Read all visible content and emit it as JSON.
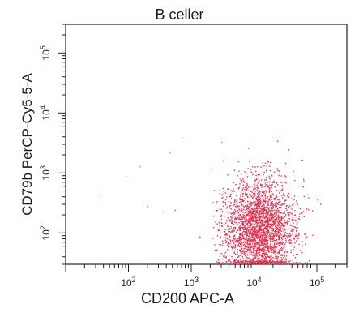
{
  "chart_data": {
    "type": "scatter",
    "title": "B celler",
    "xlabel": "CD200 APC-A",
    "ylabel": "CD79b PerCP-Cy5-5-A",
    "x_scale": "log",
    "y_scale": "log",
    "xlim": [
      10,
      300000
    ],
    "ylim": [
      30,
      300000
    ],
    "x_ticks": [
      {
        "value": 100,
        "base": "10",
        "exp": "2"
      },
      {
        "value": 1000,
        "base": "10",
        "exp": "3"
      },
      {
        "value": 10000,
        "base": "10",
        "exp": "4"
      },
      {
        "value": 100000,
        "base": "10",
        "exp": "5"
      }
    ],
    "y_ticks": [
      {
        "value": 100,
        "base": "10",
        "exp": "2"
      },
      {
        "value": 1000,
        "base": "10",
        "exp": "3"
      },
      {
        "value": 10000,
        "base": "10",
        "exp": "4"
      },
      {
        "value": 100000,
        "base": "10",
        "exp": "5"
      }
    ],
    "grid": false,
    "point_color": "#e8314f",
    "main_population": {
      "x_center": 12000,
      "y_center": 120,
      "x_spread_log": 0.28,
      "y_spread_log": 0.4
    },
    "outliers": [
      {
        "x": 35,
        "y": 440
      },
      {
        "x": 700,
        "y": 4000
      },
      {
        "x": 450,
        "y": 2200
      },
      {
        "x": 200,
        "y": 280
      },
      {
        "x": 350,
        "y": 230
      },
      {
        "x": 150,
        "y": 1300
      },
      {
        "x": 8000,
        "y": 2600
      },
      {
        "x": 90,
        "y": 900
      },
      {
        "x": 3000,
        "y": 3300
      }
    ]
  }
}
